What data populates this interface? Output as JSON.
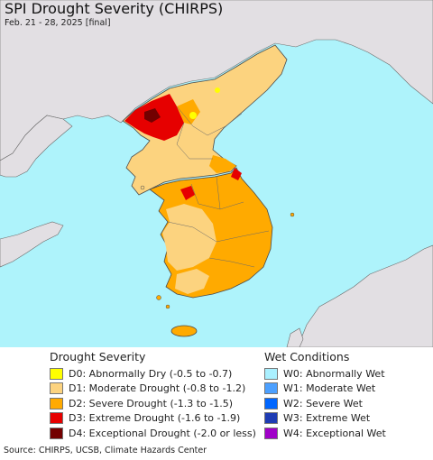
{
  "header": {
    "title": "SPI Drought Severity (CHIRPS)",
    "subtitle": "Feb. 21 - 28, 2025 [final]"
  },
  "colors": {
    "ocean": "#aef3fb",
    "land_no_data": "#e2dfe3",
    "border": "#4a4a4a"
  },
  "legend_drought": {
    "title": "Drought Severity",
    "items": [
      {
        "label": "D0: Abnormally Dry (-0.5 to -0.7)",
        "color": "#ffff00"
      },
      {
        "label": "D1: Moderate Drought (-0.8 to -1.2)",
        "color": "#fcd37f"
      },
      {
        "label": "D2: Severe Drought (-1.3 to -1.5)",
        "color": "#ffaa00"
      },
      {
        "label": "D3: Extreme Drought (-1.6 to -1.9)",
        "color": "#e60000"
      },
      {
        "label": "D4: Exceptional Drought (-2.0 or less)",
        "color": "#730000"
      }
    ]
  },
  "legend_wet": {
    "title": "Wet Conditions",
    "items": [
      {
        "label": "W0: Abnormally Wet",
        "color": "#aaf0ff"
      },
      {
        "label": "W1: Moderate Wet",
        "color": "#4ca0ff"
      },
      {
        "label": "W2: Severe Wet",
        "color": "#0066ff"
      },
      {
        "label": "W3: Extreme Wet",
        "color": "#1e3cb4"
      },
      {
        "label": "W4: Exceptional Wet",
        "color": "#a000c8"
      }
    ]
  },
  "footer": {
    "source": "Source: CHIRPS, UCSB, Climate Hazards Center"
  }
}
